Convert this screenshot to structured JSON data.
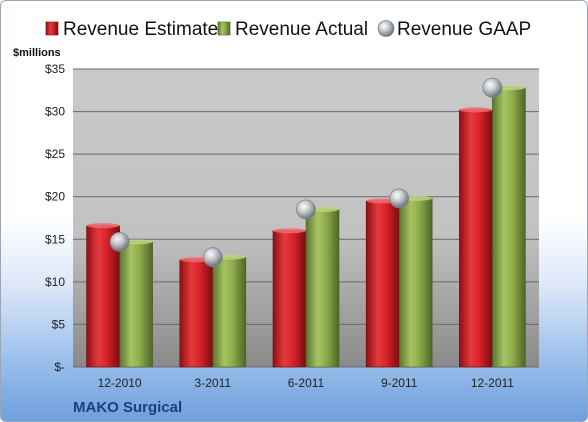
{
  "chart_data": {
    "type": "bar",
    "title": "",
    "ylabel": "$millions",
    "xlabel": "",
    "categories": [
      "12-2010",
      "3-2011",
      "6-2011",
      "9-2011",
      "12-2011"
    ],
    "series": [
      {
        "name": "Revenue Estimate",
        "type": "bar",
        "color": "#d8242a",
        "values": [
          16.6,
          12.6,
          16.0,
          19.5,
          30.2
        ]
      },
      {
        "name": "Revenue Actual",
        "type": "bar",
        "color": "#8fad4a",
        "values": [
          14.7,
          12.9,
          18.5,
          19.8,
          32.8
        ]
      },
      {
        "name": "Revenue GAAP",
        "type": "marker",
        "color": "#b8bec6",
        "values": [
          14.7,
          12.9,
          18.5,
          19.8,
          32.8
        ]
      }
    ],
    "ylim": [
      0,
      35
    ],
    "y_ticks": [
      0,
      5,
      10,
      15,
      20,
      25,
      30,
      35
    ],
    "y_tick_labels": [
      "$-",
      "$5",
      "$10",
      "$15",
      "$20",
      "$25",
      "$30",
      "$35"
    ],
    "grid": true,
    "legend_position": "top"
  },
  "footer": {
    "company": "MAKO Surgical"
  }
}
